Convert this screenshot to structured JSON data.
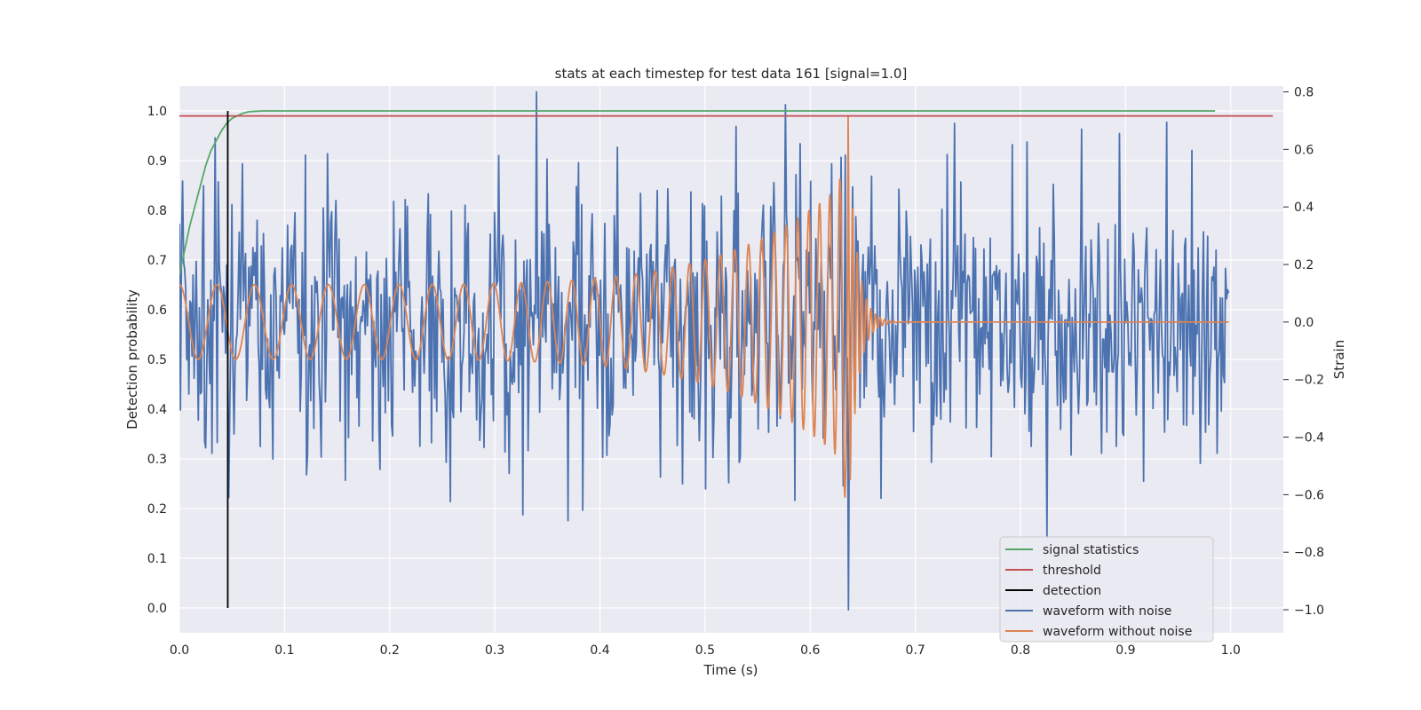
{
  "chart_data": {
    "type": "line",
    "title": "stats at each timestep for test data 161 [signal=1.0]",
    "xlabel": "Time (s)",
    "ylabel_left": "Detection probability",
    "ylabel_right": "Strain",
    "xlim": [
      0.0,
      1.05
    ],
    "ylim_left": [
      -0.05,
      1.05
    ],
    "ylim_right": [
      -1.08,
      0.82
    ],
    "xticks": [
      "0.0",
      "0.1",
      "0.2",
      "0.3",
      "0.4",
      "0.5",
      "0.6",
      "0.7",
      "0.8",
      "0.9",
      "1.0"
    ],
    "xtick_values": [
      0.0,
      0.1,
      0.2,
      0.3,
      0.4,
      0.5,
      0.6,
      0.7,
      0.8,
      0.9,
      1.0
    ],
    "yticks_left": [
      "0.0",
      "0.1",
      "0.2",
      "0.3",
      "0.4",
      "0.5",
      "0.6",
      "0.7",
      "0.8",
      "0.9",
      "1.0"
    ],
    "ytick_left_values": [
      0.0,
      0.1,
      0.2,
      0.3,
      0.4,
      0.5,
      0.6,
      0.7,
      0.8,
      0.9,
      1.0
    ],
    "yticks_right": [
      "−1.0",
      "−0.8",
      "−0.6",
      "−0.4",
      "−0.2",
      "0.0",
      "0.2",
      "0.4",
      "0.6",
      "0.8"
    ],
    "ytick_right_values": [
      -1.0,
      -0.8,
      -0.6,
      -0.4,
      -0.2,
      0.0,
      0.2,
      0.4,
      0.6,
      0.8
    ],
    "grid": true,
    "legend_position": "lower-right",
    "series": [
      {
        "name": "signal statistics",
        "color": "#55a868",
        "axis": "left",
        "x": [
          0.0,
          0.005,
          0.01,
          0.015,
          0.02,
          0.025,
          0.03,
          0.035,
          0.04,
          0.045,
          0.05,
          0.055,
          0.06,
          0.065,
          0.07,
          0.08,
          0.1,
          0.2,
          0.4,
          0.6,
          0.8,
          0.985
        ],
        "y": [
          0.67,
          0.72,
          0.77,
          0.81,
          0.85,
          0.89,
          0.92,
          0.94,
          0.96,
          0.975,
          0.985,
          0.99,
          0.995,
          0.998,
          0.999,
          1.0,
          1.0,
          1.0,
          1.0,
          1.0,
          1.0,
          1.0
        ]
      },
      {
        "name": "threshold",
        "color": "#c44e52",
        "axis": "left",
        "x": [
          0.0,
          1.04
        ],
        "y": [
          0.99,
          0.99
        ]
      },
      {
        "name": "detection",
        "color": "#000000",
        "axis": "left",
        "x": [
          0.046,
          0.046
        ],
        "y": [
          0.0,
          1.0
        ]
      },
      {
        "name": "waveform with noise",
        "color": "#4c72b0",
        "axis": "right",
        "sample_count": 1000,
        "x_range": [
          0.0,
          0.998
        ],
        "seed": 161,
        "noise_std": 0.23,
        "peaks": [
          [
            0.003,
            0.49
          ],
          [
            0.034,
            0.64
          ],
          [
            0.34,
            0.8
          ],
          [
            0.636,
            -1.0
          ],
          [
            0.633,
            0.58
          ],
          [
            0.825,
            -0.75
          ],
          [
            0.06,
            0.55
          ],
          [
            0.12,
            0.58
          ],
          [
            0.59,
            0.62
          ],
          [
            0.585,
            -0.62
          ],
          [
            0.158,
            -0.55
          ],
          [
            0.327,
            -0.67
          ],
          [
            0.5,
            -0.58
          ],
          [
            0.62,
            0.55
          ]
        ]
      },
      {
        "name": "waveform without noise",
        "color": "#dd8452",
        "axis": "right",
        "sample_count": 2000,
        "x_range": [
          0.0,
          0.998
        ],
        "chirp": {
          "t_merge": 0.636,
          "f_start": 28,
          "f_end": 110,
          "amp_start": 0.13,
          "amp_peak": 0.5,
          "ringdown_tau": 0.008,
          "peak_extra": 0.72
        }
      }
    ]
  }
}
